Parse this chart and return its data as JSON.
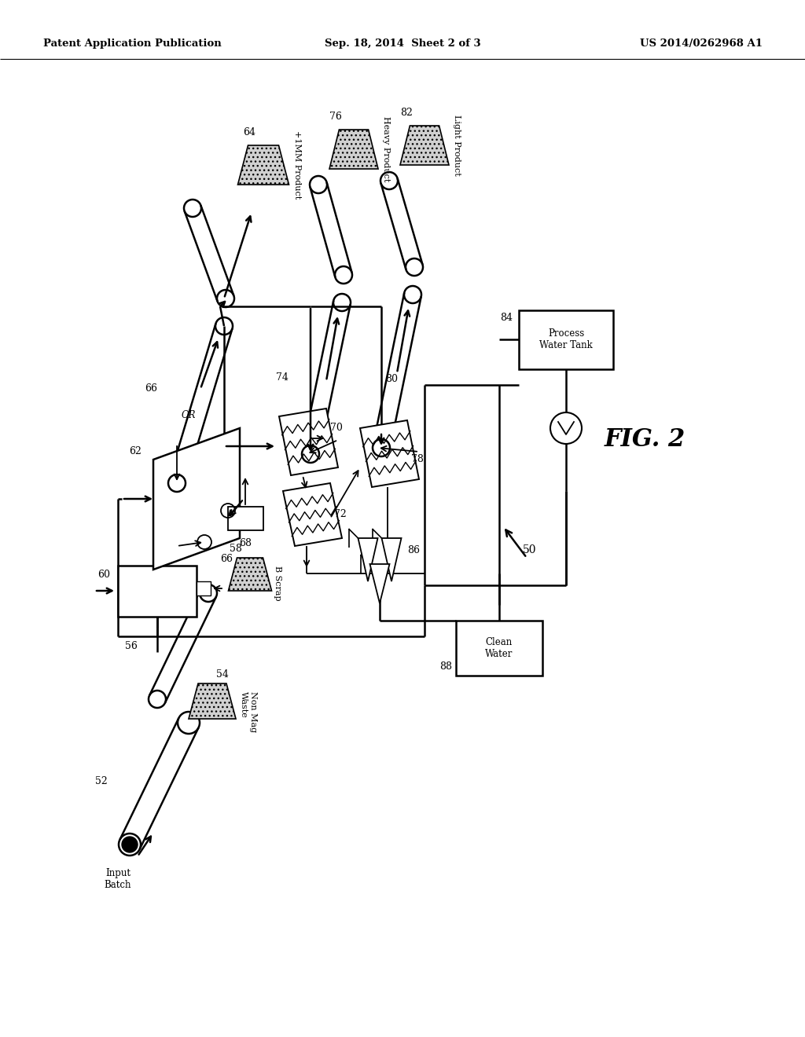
{
  "title_left": "Patent Application Publication",
  "title_center": "Sep. 18, 2014  Sheet 2 of 3",
  "title_right": "US 2014/0262968 A1",
  "fig_label": "FIG. 2",
  "bg_color": "#ffffff"
}
